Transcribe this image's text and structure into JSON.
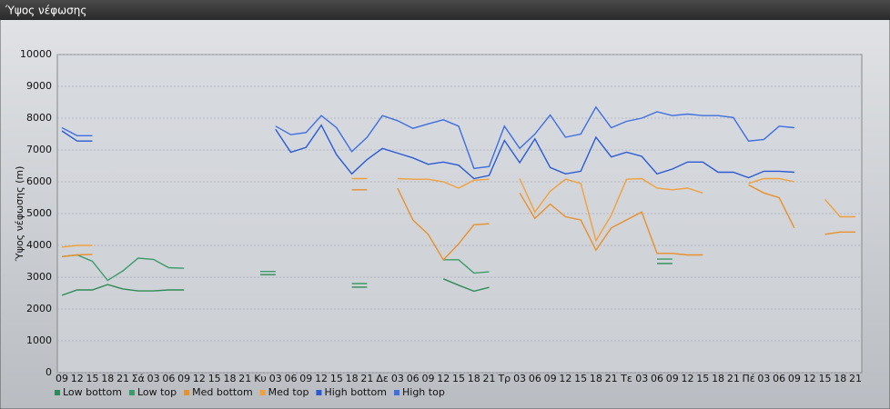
{
  "chart_data": {
    "type": "line",
    "title": "Ύψος νέφωσης",
    "y_label": "Ύψος νέφωσης (m)",
    "categories": [
      "09",
      "12",
      "15",
      "18",
      "21",
      "Σά",
      "03",
      "06",
      "09",
      "12",
      "15",
      "18",
      "21",
      "Κυ",
      "03",
      "06",
      "09",
      "12",
      "15",
      "18",
      "21",
      "Δε",
      "03",
      "06",
      "09",
      "12",
      "15",
      "18",
      "21",
      "Τρ",
      "03",
      "06",
      "09",
      "12",
      "15",
      "18",
      "21",
      "Τε",
      "03",
      "06",
      "09",
      "12",
      "15",
      "18",
      "21",
      "Πέ",
      "03",
      "06",
      "09",
      "12",
      "15",
      "18",
      "21"
    ],
    "ylim": [
      0,
      10000
    ],
    "yticks": [
      0,
      1000,
      2000,
      3000,
      4000,
      5000,
      6000,
      7000,
      8000,
      9000,
      10000
    ],
    "grid": true,
    "legend": "bottom-left",
    "series": [
      {
        "name": "Low bottom",
        "color": "#2e8b57",
        "values": [
          2430,
          2600,
          2600,
          2770,
          2630,
          2570,
          2570,
          2600,
          2600,
          null,
          null,
          null,
          null,
          3080,
          3080,
          null,
          null,
          null,
          null,
          2690,
          2690,
          null,
          null,
          null,
          null,
          2950,
          2750,
          2560,
          2680,
          null,
          null,
          null,
          null,
          null,
          null,
          null,
          null,
          null,
          null,
          3430,
          3430,
          null,
          null,
          null,
          null,
          null,
          null,
          null,
          null,
          null,
          null,
          null,
          null
        ]
      },
      {
        "name": "Low top",
        "color": "#3a9c6a",
        "values": [
          3650,
          3700,
          3500,
          2900,
          3200,
          3600,
          3560,
          3300,
          3280,
          null,
          null,
          null,
          null,
          3180,
          3180,
          null,
          null,
          null,
          null,
          2800,
          2800,
          null,
          null,
          null,
          null,
          3550,
          3550,
          3130,
          3170,
          null,
          null,
          null,
          null,
          null,
          null,
          null,
          null,
          null,
          null,
          3570,
          3570,
          null,
          null,
          null,
          null,
          null,
          null,
          null,
          null,
          null,
          null,
          null,
          null
        ]
      },
      {
        "name": "Med bottom",
        "color": "#e8902c",
        "values": [
          3650,
          3700,
          3720,
          null,
          null,
          null,
          null,
          null,
          null,
          null,
          null,
          null,
          null,
          null,
          null,
          null,
          null,
          null,
          null,
          5750,
          5750,
          null,
          5800,
          4800,
          4350,
          3550,
          4050,
          4650,
          4680,
          null,
          5650,
          4850,
          5300,
          4900,
          4800,
          3850,
          4550,
          4800,
          5050,
          3750,
          3750,
          3700,
          3700,
          null,
          null,
          5900,
          5650,
          5500,
          4550,
          null,
          4350,
          4420,
          4420
        ]
      },
      {
        "name": "Med top",
        "color": "#f2a03e",
        "values": [
          3950,
          4000,
          4000,
          null,
          null,
          null,
          null,
          null,
          null,
          null,
          null,
          null,
          null,
          null,
          null,
          null,
          null,
          null,
          null,
          6100,
          6100,
          null,
          6100,
          6080,
          6080,
          6000,
          5800,
          6050,
          6080,
          null,
          6100,
          5050,
          5700,
          6080,
          5950,
          4150,
          4950,
          6080,
          6100,
          5800,
          5750,
          5800,
          5650,
          null,
          null,
          5950,
          6100,
          6100,
          6000,
          null,
          5450,
          4900,
          4900
        ]
      },
      {
        "name": "High bottom",
        "color": "#2a5bd4",
        "values": [
          7600,
          7280,
          7280,
          null,
          null,
          null,
          null,
          null,
          null,
          null,
          null,
          null,
          null,
          null,
          7650,
          6930,
          7080,
          7780,
          6850,
          6250,
          6700,
          7050,
          6900,
          6750,
          6550,
          6620,
          6520,
          6100,
          6200,
          7300,
          6600,
          7350,
          6450,
          6250,
          6330,
          7400,
          6780,
          6930,
          6800,
          6250,
          6400,
          6620,
          6620,
          6300,
          6300,
          6130,
          6330,
          6330,
          6300,
          null,
          null,
          null,
          null
        ]
      },
      {
        "name": "High top",
        "color": "#3f6fe0",
        "values": [
          7700,
          7450,
          7450,
          null,
          null,
          null,
          null,
          null,
          null,
          null,
          null,
          null,
          null,
          null,
          7750,
          7480,
          7550,
          8080,
          7700,
          6950,
          7400,
          8080,
          7920,
          7680,
          7820,
          7950,
          7750,
          6420,
          6480,
          7750,
          7050,
          7500,
          8100,
          7400,
          7500,
          8350,
          7700,
          7900,
          8000,
          8200,
          8080,
          8130,
          8080,
          8080,
          8020,
          7280,
          7330,
          7750,
          7700,
          null,
          null,
          null,
          null
        ]
      }
    ]
  }
}
